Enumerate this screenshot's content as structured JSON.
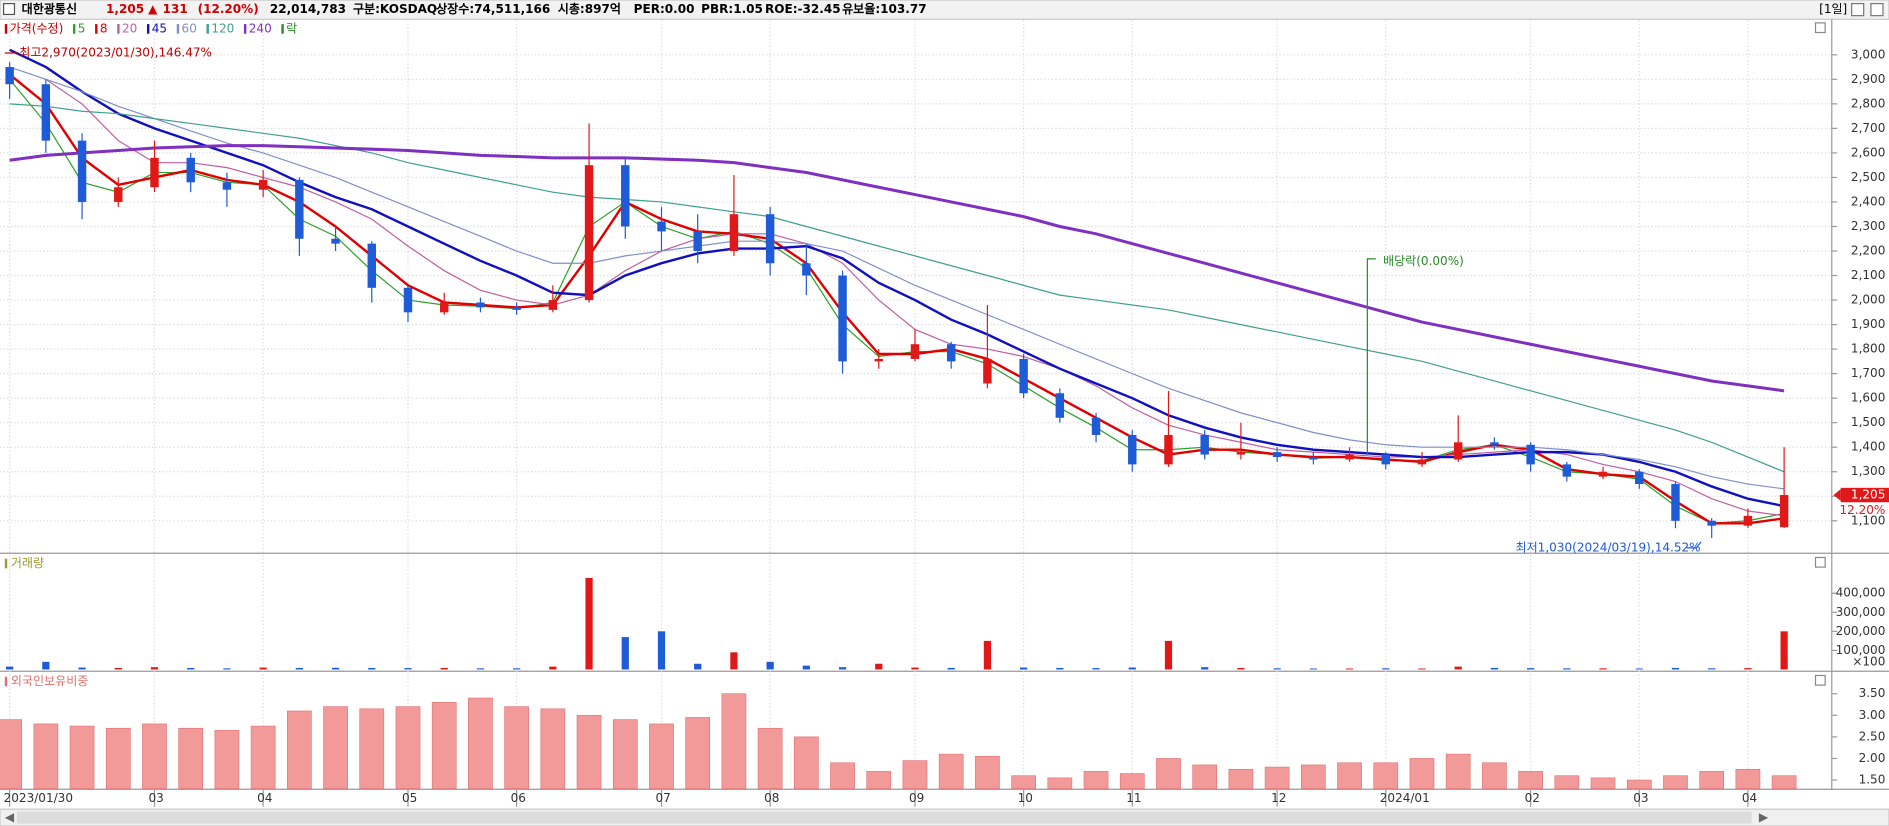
{
  "header": {
    "name": "대한광통신",
    "price": "1,205",
    "arrow": "▲",
    "change": "131",
    "change_pct": "(12.20%)",
    "volume": "22,014,783",
    "market": "구분:KOSDAQ",
    "shares": "상장수:74,511,166",
    "cap": "시총:897억",
    "per": "PER:0.00",
    "pbr": "PBR:1.05",
    "roe": "ROE:-32.45",
    "reserve": "유보율:103.77",
    "period": "[1일]"
  },
  "chart_data": [
    {
      "type": "candlestick",
      "price_name": "가격(수정)",
      "price_color": "#d00000",
      "up_color": "#e01818",
      "down_color": "#1e5bd6",
      "ex_dividend_name": "락",
      "ex_dividend_color": "#2a8a2a",
      "ex_dividend_label": "배당락(0.00%)",
      "high_label": "최고2,970(2023/01/30),146.47%",
      "low_label": "최저1,030(2024/03/19),14.52%",
      "last_price_label": "1,205",
      "last_change_label": "12.20%",
      "grid": true,
      "ylim": [
        970,
        3140
      ],
      "yticks": [
        {
          "value": 1100,
          "label": "1,100"
        },
        {
          "value": 1200,
          "label": "1,200"
        },
        {
          "value": 1300,
          "label": "1,300"
        },
        {
          "value": 1400,
          "label": "1,400"
        },
        {
          "value": 1500,
          "label": "1,500"
        },
        {
          "value": 1600,
          "label": "1,600"
        },
        {
          "value": 1700,
          "label": "1,700"
        },
        {
          "value": 1800,
          "label": "1,800"
        },
        {
          "value": 1900,
          "label": "1,900"
        },
        {
          "value": 2000,
          "label": "2,000"
        },
        {
          "value": 2100,
          "label": "2,100"
        },
        {
          "value": 2200,
          "label": "2,200"
        },
        {
          "value": 2300,
          "label": "2,300"
        },
        {
          "value": 2400,
          "label": "2,400"
        },
        {
          "value": 2500,
          "label": "2,500"
        },
        {
          "value": 2600,
          "label": "2,600"
        },
        {
          "value": 2700,
          "label": "2,700"
        },
        {
          "value": 2800,
          "label": "2,800"
        },
        {
          "value": 2900,
          "label": "2,900"
        },
        {
          "value": 3000,
          "label": "3,000"
        }
      ],
      "open": [
        2950,
        2880,
        2650,
        2400,
        2460,
        2580,
        2480,
        2450,
        2490,
        2250,
        2230,
        2050,
        1950,
        1990,
        1970,
        1960,
        2000,
        2550,
        2320,
        2280,
        2200,
        2350,
        2150,
        2100,
        1750,
        1760,
        1820,
        1660,
        1760,
        1620,
        1520,
        1450,
        1330,
        1450,
        1370,
        1380,
        1360,
        1350,
        1370,
        1330,
        1350,
        1420,
        1410,
        1330,
        1280,
        1300,
        1250,
        1100,
        1080,
        1074
      ],
      "high": [
        2970,
        2900,
        2680,
        2500,
        2650,
        2600,
        2520,
        2530,
        2500,
        2300,
        2240,
        2060,
        2030,
        2010,
        1990,
        2060,
        2720,
        2580,
        2380,
        2350,
        2510,
        2380,
        2230,
        2120,
        1800,
        1880,
        1830,
        1980,
        1780,
        1640,
        1540,
        1470,
        1630,
        1470,
        1500,
        1400,
        1380,
        1400,
        1380,
        1380,
        1530,
        1440,
        1420,
        1340,
        1320,
        1310,
        1260,
        1110,
        1150,
        1400
      ],
      "low": [
        2820,
        2600,
        2330,
        2380,
        2440,
        2440,
        2380,
        2420,
        2180,
        2200,
        1990,
        1910,
        1940,
        1950,
        1940,
        1950,
        1990,
        2250,
        2200,
        2150,
        2180,
        2100,
        2020,
        1700,
        1720,
        1750,
        1720,
        1640,
        1600,
        1500,
        1420,
        1300,
        1320,
        1350,
        1350,
        1340,
        1330,
        1340,
        1310,
        1320,
        1340,
        1390,
        1300,
        1260,
        1270,
        1230,
        1070,
        1030,
        1070,
        1070
      ],
      "close": [
        2880,
        2650,
        2400,
        2460,
        2580,
        2480,
        2450,
        2490,
        2250,
        2230,
        2050,
        1950,
        1990,
        1970,
        1960,
        2000,
        2550,
        2300,
        2280,
        2200,
        2350,
        2150,
        2100,
        1750,
        1760,
        1820,
        1750,
        1760,
        1620,
        1520,
        1450,
        1330,
        1450,
        1370,
        1380,
        1360,
        1350,
        1370,
        1330,
        1350,
        1420,
        1410,
        1330,
        1280,
        1300,
        1250,
        1100,
        1080,
        1120,
        1205
      ],
      "series": [
        {
          "name": "5",
          "color": "#2ca02c",
          "width": 1,
          "values": [
            2900,
            2720,
            2480,
            2440,
            2520,
            2520,
            2480,
            2470,
            2330,
            2260,
            2120,
            2000,
            1980,
            1975,
            1965,
            1990,
            2300,
            2400,
            2300,
            2250,
            2280,
            2230,
            2130,
            1900,
            1770,
            1790,
            1790,
            1740,
            1650,
            1560,
            1480,
            1390,
            1390,
            1400,
            1380,
            1370,
            1355,
            1360,
            1345,
            1345,
            1390,
            1410,
            1360,
            1300,
            1290,
            1270,
            1160,
            1090,
            1100,
            1130
          ]
        },
        {
          "name": "8",
          "color": "#e00000",
          "width": 2,
          "values": [
            2920,
            2800,
            2580,
            2470,
            2500,
            2530,
            2490,
            2470,
            2400,
            2300,
            2180,
            2060,
            1990,
            1980,
            1970,
            1980,
            2180,
            2400,
            2330,
            2280,
            2270,
            2250,
            2150,
            1950,
            1780,
            1780,
            1800,
            1760,
            1680,
            1600,
            1520,
            1440,
            1370,
            1390,
            1390,
            1370,
            1360,
            1360,
            1350,
            1340,
            1380,
            1410,
            1390,
            1310,
            1290,
            1280,
            1180,
            1090,
            1090,
            1110
          ]
        },
        {
          "name": "20",
          "color": "#c060a0",
          "width": 1,
          "values": [
            null,
            2900,
            2800,
            2650,
            2560,
            2560,
            2540,
            2500,
            2460,
            2400,
            2330,
            2220,
            2120,
            2040,
            2000,
            1980,
            2020,
            2120,
            2200,
            2250,
            2270,
            2270,
            2230,
            2150,
            2000,
            1880,
            1820,
            1800,
            1770,
            1720,
            1650,
            1560,
            1490,
            1450,
            1420,
            1390,
            1380,
            1370,
            1360,
            1360,
            1370,
            1380,
            1390,
            1370,
            1330,
            1300,
            1260,
            1190,
            1140,
            1120
          ]
        },
        {
          "name": "45",
          "color": "#1010c0",
          "width": 2,
          "values": [
            3020,
            2950,
            2850,
            2760,
            2700,
            2650,
            2600,
            2550,
            2480,
            2420,
            2370,
            2300,
            2230,
            2160,
            2100,
            2030,
            2020,
            2100,
            2150,
            2190,
            2210,
            2210,
            2220,
            2170,
            2070,
            2000,
            1920,
            1860,
            1790,
            1720,
            1660,
            1600,
            1530,
            1480,
            1440,
            1410,
            1390,
            1380,
            1370,
            1360,
            1360,
            1370,
            1380,
            1380,
            1370,
            1340,
            1300,
            1240,
            1190,
            1160
          ]
        },
        {
          "name": "60",
          "color": "#8090c8",
          "width": 1,
          "values": [
            2950,
            2900,
            2850,
            2790,
            2740,
            2690,
            2640,
            2600,
            2550,
            2500,
            2440,
            2380,
            2320,
            2260,
            2200,
            2150,
            2150,
            2180,
            2200,
            2220,
            2240,
            2240,
            2230,
            2200,
            2130,
            2060,
            2000,
            1940,
            1880,
            1820,
            1760,
            1700,
            1640,
            1590,
            1540,
            1500,
            1460,
            1430,
            1410,
            1400,
            1400,
            1400,
            1400,
            1390,
            1370,
            1350,
            1320,
            1280,
            1250,
            1230
          ]
        },
        {
          "name": "120",
          "color": "#40a090",
          "width": 1,
          "values": [
            2800,
            2790,
            2770,
            2760,
            2740,
            2720,
            2700,
            2680,
            2660,
            2630,
            2600,
            2560,
            2530,
            2500,
            2470,
            2440,
            2420,
            2410,
            2400,
            2380,
            2360,
            2340,
            2300,
            2260,
            2220,
            2180,
            2140,
            2100,
            2060,
            2020,
            2000,
            1980,
            1960,
            1930,
            1900,
            1870,
            1840,
            1810,
            1780,
            1750,
            1710,
            1670,
            1630,
            1590,
            1550,
            1510,
            1470,
            1420,
            1360,
            1300
          ]
        },
        {
          "name": "240",
          "color": "#8030c0",
          "width": 2.5,
          "values": [
            2570,
            2590,
            2600,
            2610,
            2620,
            2625,
            2630,
            2630,
            2625,
            2620,
            2615,
            2610,
            2600,
            2590,
            2585,
            2580,
            2580,
            2580,
            2575,
            2570,
            2560,
            2540,
            2520,
            2490,
            2460,
            2430,
            2400,
            2370,
            2340,
            2300,
            2270,
            2230,
            2190,
            2150,
            2110,
            2070,
            2030,
            1990,
            1950,
            1910,
            1880,
            1850,
            1820,
            1790,
            1760,
            1730,
            1700,
            1670,
            1650,
            1630
          ]
        }
      ]
    },
    {
      "type": "volume",
      "title": "거래량",
      "unit_label": "×100",
      "ylim": [
        0,
        600000
      ],
      "yticks": [
        {
          "value": 100000,
          "label": "100,000"
        },
        {
          "value": 200000,
          "label": "200,000"
        },
        {
          "value": 300000,
          "label": "300,000"
        },
        {
          "value": 400000,
          "label": "400,000"
        }
      ],
      "values": [
        15000,
        40000,
        10000,
        8000,
        12000,
        8000,
        6000,
        10000,
        8000,
        9000,
        8000,
        7000,
        8000,
        6000,
        6000,
        15000,
        480000,
        170000,
        200000,
        30000,
        90000,
        40000,
        20000,
        12000,
        30000,
        10000,
        8000,
        150000,
        10000,
        8000,
        7000,
        10000,
        150000,
        12000,
        8000,
        6000,
        5000,
        5000,
        6000,
        5000,
        15000,
        8000,
        7000,
        6000,
        6000,
        5000,
        8000,
        6000,
        7000,
        200000
      ]
    },
    {
      "type": "bar",
      "title": "외국인보유비중",
      "color": "#f29a9a",
      "ylim": [
        1.3,
        3.95
      ],
      "yticks": [
        {
          "value": 1.5,
          "label": "1.50"
        },
        {
          "value": 2,
          "label": "2.00"
        },
        {
          "value": 2.5,
          "label": "2.50"
        },
        {
          "value": 3,
          "label": "3.00"
        },
        {
          "value": 3.5,
          "label": "3.50"
        }
      ],
      "values": [
        2.9,
        2.8,
        2.75,
        2.7,
        2.8,
        2.7,
        2.65,
        2.75,
        3.1,
        3.2,
        3.15,
        3.2,
        3.3,
        3.4,
        3.2,
        3.15,
        3.0,
        2.9,
        2.8,
        2.95,
        3.5,
        2.7,
        2.5,
        1.9,
        1.7,
        1.95,
        2.1,
        2.05,
        1.6,
        1.55,
        1.7,
        1.65,
        2.0,
        1.85,
        1.75,
        1.8,
        1.85,
        1.9,
        1.9,
        2.0,
        2.1,
        1.9,
        1.7,
        1.6,
        1.55,
        1.5,
        1.6,
        1.7,
        1.75,
        1.6
      ],
      "xticks": [
        {
          "value": 0,
          "label": "2023/01/30"
        },
        {
          "value": 4,
          "label": "03"
        },
        {
          "value": 7,
          "label": "04"
        },
        {
          "value": 11,
          "label": "05"
        },
        {
          "value": 14,
          "label": "06"
        },
        {
          "value": 18,
          "label": "07"
        },
        {
          "value": 21,
          "label": "08"
        },
        {
          "value": 25,
          "label": "09"
        },
        {
          "value": 28,
          "label": "10"
        },
        {
          "value": 31,
          "label": "11"
        },
        {
          "value": 35,
          "label": "12"
        },
        {
          "value": 38,
          "label": "2024/01"
        },
        {
          "value": 42,
          "label": "02"
        },
        {
          "value": 45,
          "label": "03"
        },
        {
          "value": 48,
          "label": "04"
        }
      ]
    }
  ]
}
